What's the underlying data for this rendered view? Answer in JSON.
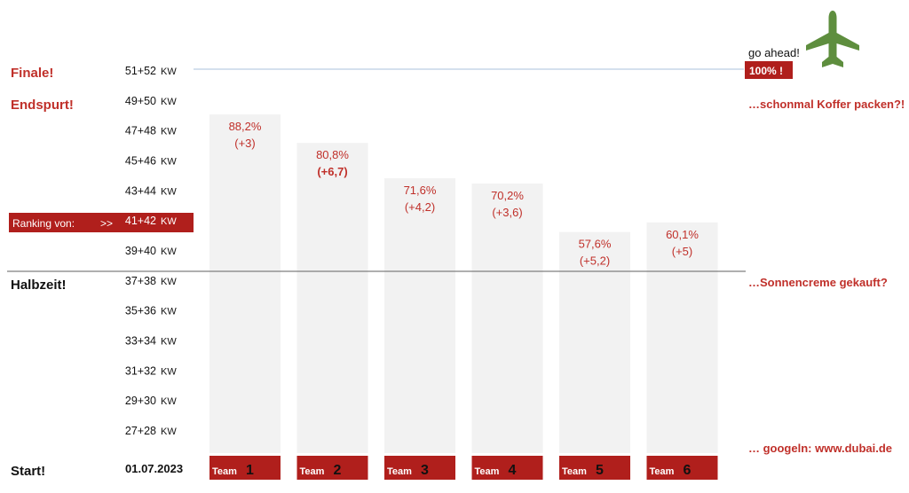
{
  "colors": {
    "accent_red": "#b01f1c",
    "bar_fill": "#f2f2f2",
    "label_red": "#c0302a",
    "goal_line": "#a9c0de",
    "midline": "#7f7f7f",
    "plane_green": "#5e8e3e",
    "text": "#111111"
  },
  "left_labels": {
    "finale": "Finale!",
    "endspurt": "Endspurt!",
    "halbzeit": "Halbzeit!",
    "start": "Start!",
    "ranking": "Ranking von:",
    "ranking_arrow": ">>"
  },
  "right_notes": {
    "go_ahead": "go ahead!",
    "hundred": "100% !",
    "koffer": "…schonmal Koffer packen?!",
    "sonnencreme": "…Sonnencreme gekauft?",
    "googeln": "… googeln:  www.dubai.de"
  },
  "plane_icon": "airplane-icon",
  "chart_data": {
    "type": "bar",
    "y_scale": "percent of goal (100% = week 51+52)",
    "ylim": [
      0,
      100
    ],
    "start_label": "01.07.2023",
    "kw_unit": "KW",
    "weeks": [
      "27+28",
      "29+30",
      "31+32",
      "33+34",
      "35+36",
      "37+38",
      "39+40",
      "41+42",
      "43+44",
      "45+46",
      "47+48",
      "49+50",
      "51+52"
    ],
    "current_week": "41+42",
    "halfway_week": "37+38",
    "team_prefix": "Team",
    "categories": [
      "1",
      "2",
      "3",
      "4",
      "5",
      "6"
    ],
    "values": [
      88.2,
      80.8,
      71.6,
      70.2,
      57.6,
      60.1
    ],
    "value_labels": [
      "88,2%",
      "80,8%",
      "71,6%",
      "70,2%",
      "57,6%",
      "60,1%"
    ],
    "change_labels": [
      "(+3)",
      "(+6,7)",
      "(+4,2)",
      "(+3,6)",
      "(+5,2)",
      "(+5)"
    ],
    "highlight_change": 1
  }
}
